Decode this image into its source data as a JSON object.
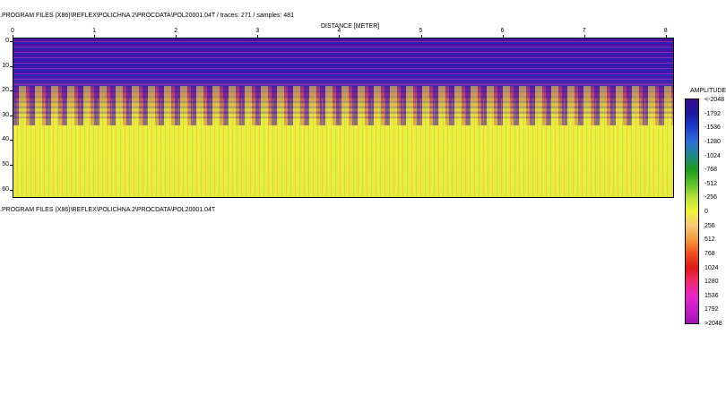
{
  "header": {
    "file_info": ".PROGRAM FILES (X86)\\REFLEX\\POLICHNA 2\\PROCDATA\\POL20001.04T / traces: 271 / samples: 481"
  },
  "plot": {
    "x_axis_label": "DISTANCE [METER]",
    "x_ticks": [
      "0",
      "1",
      "2",
      "3",
      "4",
      "5",
      "6",
      "7",
      "8"
    ],
    "y_ticks": [
      "0",
      "10",
      "20",
      "30",
      "40",
      "50",
      "60"
    ]
  },
  "footer": {
    "file_path": ".PROGRAM FILES (X86)\\REFLEX\\POLICHNA 2\\PROCDATA\\POL20001.04T"
  },
  "colorbar": {
    "title": "AMPLITUDE",
    "labels": [
      "<-2048",
      "-1792",
      "-1536",
      "-1280",
      "-1024",
      "-768",
      "-512",
      "-256",
      "0",
      "256",
      "512",
      "768",
      "1024",
      "1280",
      "1536",
      "1792",
      ">2048"
    ],
    "colors": [
      "#3c0a8c",
      "#1a1a9e",
      "#1f3cc8",
      "#2f6fd8",
      "#1f8a8a",
      "#1f9a1f",
      "#5ac02a",
      "#b8e03a",
      "#f2f23a",
      "#f5c878",
      "#f59a3c",
      "#f0501e",
      "#e01818",
      "#f02a6e",
      "#e628c8",
      "#c81ec8",
      "#a014b4"
    ]
  }
}
